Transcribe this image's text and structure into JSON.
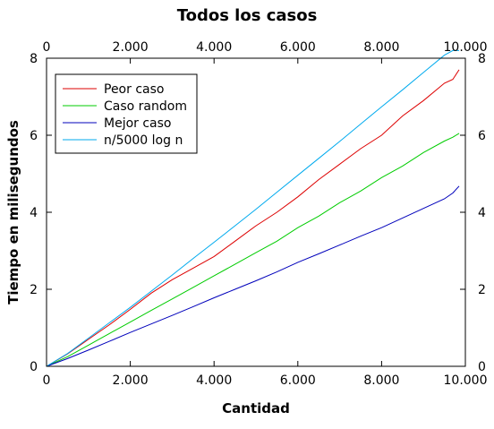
{
  "chart_data": {
    "type": "line",
    "title": "Todos los casos",
    "xlabel": "Cantidad",
    "ylabel": "Tiempo en milisegundos",
    "xlim": [
      0,
      10000
    ],
    "ylim": [
      0,
      8
    ],
    "x_ticks": [
      0,
      2000,
      4000,
      6000,
      8000,
      10000
    ],
    "x_tick_labels": [
      "0",
      "2.000",
      "4.000",
      "6.000",
      "8.000",
      "10.000"
    ],
    "y_ticks": [
      0,
      2,
      4,
      6,
      8
    ],
    "y_tick_labels": [
      "0",
      "2",
      "4",
      "6",
      "8"
    ],
    "grid": false,
    "legend_position": "top-left",
    "x": [
      0,
      500,
      1000,
      1500,
      2000,
      2500,
      3000,
      3500,
      4000,
      4500,
      5000,
      5500,
      6000,
      6500,
      7000,
      7500,
      8000,
      8500,
      9000,
      9500,
      9700,
      9850
    ],
    "series": [
      {
        "name": "Peor caso",
        "color": "#dd0000",
        "values": [
          0.0,
          0.32,
          0.7,
          1.08,
          1.48,
          1.9,
          2.25,
          2.55,
          2.85,
          3.25,
          3.65,
          4.0,
          4.4,
          4.85,
          5.25,
          5.65,
          6.0,
          6.5,
          6.9,
          7.35,
          7.45,
          7.7
        ]
      },
      {
        "name": "Caso random",
        "color": "#00cc00",
        "values": [
          0.0,
          0.25,
          0.55,
          0.85,
          1.15,
          1.45,
          1.75,
          2.05,
          2.35,
          2.65,
          2.95,
          3.25,
          3.6,
          3.9,
          4.25,
          4.55,
          4.9,
          5.2,
          5.55,
          5.85,
          5.95,
          6.05
        ]
      },
      {
        "name": "Mejor caso",
        "color": "#0000bb",
        "values": [
          0.0,
          0.2,
          0.42,
          0.65,
          0.88,
          1.1,
          1.32,
          1.55,
          1.78,
          2.0,
          2.22,
          2.45,
          2.7,
          2.92,
          3.15,
          3.38,
          3.6,
          3.85,
          4.1,
          4.35,
          4.5,
          4.68
        ]
      },
      {
        "name": "n/5000 log n",
        "color": "#00aaee",
        "values": [
          0.0,
          0.33,
          0.73,
          1.13,
          1.53,
          1.95,
          2.37,
          2.8,
          3.22,
          3.65,
          4.08,
          4.52,
          4.96,
          5.4,
          5.84,
          6.29,
          6.74,
          7.18,
          7.63,
          8.08,
          8.26,
          8.4
        ]
      }
    ]
  }
}
